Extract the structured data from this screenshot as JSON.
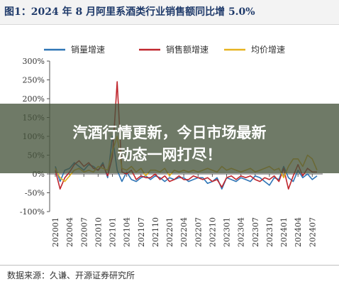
{
  "title": "图1：2024 年 8 月阿里系酒类行业销售额同比增 5.0%",
  "overlay": {
    "line1": "汽酒行情更新，今日市场最新",
    "line2": "动态一网打尽！"
  },
  "source": "数据来源：久谦、开源证券研究所",
  "colors": {
    "title": "#1f3a6a",
    "series": [
      "#2e75b6",
      "#c0262d",
      "#e7b31f"
    ],
    "overlay": "#46543c"
  },
  "chart_data": {
    "type": "line",
    "title": "图1：2024 年 8 月阿里系酒类行业销售额同比增 5.0%",
    "xlabel": "",
    "ylabel": "",
    "ylim": [
      -100,
      300
    ],
    "yticks": [
      "-100%",
      "-50%",
      "0%",
      "50%",
      "100%",
      "150%",
      "200%",
      "250%",
      "300%"
    ],
    "x_tick_labels": [
      "202001",
      "202004",
      "202007",
      "202010",
      "202101",
      "202104",
      "202107",
      "202110",
      "202201",
      "202204",
      "202207",
      "202210",
      "202301",
      "202304",
      "202307",
      "202310",
      "202401",
      "202404",
      "202407"
    ],
    "x": [
      "202001",
      "202002",
      "202003",
      "202004",
      "202005",
      "202006",
      "202007",
      "202008",
      "202009",
      "202010",
      "202011",
      "202012",
      "202101",
      "202102",
      "202103",
      "202104",
      "202105",
      "202106",
      "202107",
      "202108",
      "202109",
      "202110",
      "202111",
      "202112",
      "202201",
      "202202",
      "202203",
      "202204",
      "202205",
      "202206",
      "202207",
      "202208",
      "202209",
      "202210",
      "202211",
      "202212",
      "202301",
      "202302",
      "202303",
      "202304",
      "202305",
      "202306",
      "202307",
      "202308",
      "202309",
      "202310",
      "202311",
      "202312",
      "202401",
      "202402",
      "202403",
      "202404",
      "202405",
      "202406",
      "202407",
      "202408"
    ],
    "legend_position": "top",
    "grid": false,
    "series": [
      {
        "name": "销量增速",
        "color": "#2e75b6",
        "values": [
          20,
          -20,
          10,
          15,
          30,
          20,
          10,
          25,
          20,
          10,
          30,
          -10,
          100,
          10,
          -20,
          5,
          -15,
          -20,
          -10,
          -5,
          -15,
          -5,
          -10,
          -20,
          -10,
          -15,
          -10,
          -10,
          -20,
          -15,
          -10,
          -10,
          -25,
          -20,
          -10,
          -40,
          -10,
          -15,
          -20,
          -10,
          -15,
          -20,
          -5,
          -10,
          -20,
          -30,
          -10,
          -15,
          20,
          -10,
          -20,
          10,
          -10,
          0,
          -15,
          -5
        ]
      },
      {
        "name": "销售额增速",
        "color": "#c0262d",
        "values": [
          10,
          -40,
          -10,
          5,
          25,
          35,
          20,
          30,
          15,
          10,
          25,
          -5,
          45,
          245,
          5,
          0,
          10,
          -15,
          -5,
          -10,
          -10,
          0,
          -15,
          -5,
          -20,
          -15,
          -5,
          -15,
          -15,
          -5,
          -10,
          -15,
          -10,
          -20,
          -15,
          -35,
          -10,
          -5,
          -15,
          -5,
          -10,
          -5,
          -15,
          -20,
          -10,
          -15,
          -5,
          -20,
          15,
          -40,
          -5,
          25,
          -5,
          15,
          5,
          5
        ]
      },
      {
        "name": "均价增速",
        "color": "#e7b31f",
        "values": [
          15,
          -10,
          -20,
          -5,
          10,
          15,
          5,
          10,
          5,
          20,
          15,
          10,
          60,
          100,
          15,
          10,
          20,
          5,
          15,
          -5,
          10,
          10,
          5,
          15,
          -5,
          10,
          5,
          10,
          5,
          10,
          5,
          10,
          15,
          10,
          5,
          20,
          10,
          15,
          10,
          5,
          10,
          15,
          5,
          10,
          15,
          20,
          10,
          15,
          -10,
          20,
          40,
          40,
          20,
          50,
          40,
          10
        ]
      }
    ]
  }
}
